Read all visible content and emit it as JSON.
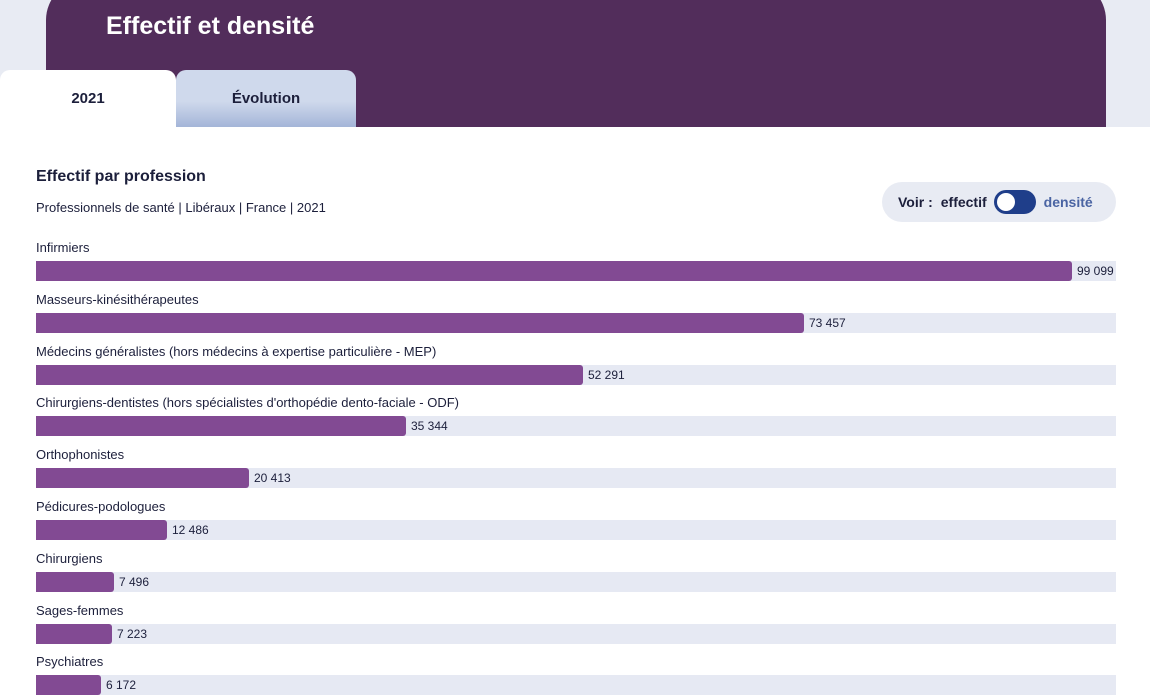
{
  "header": {
    "title": "Effectif et densité"
  },
  "tabs": [
    {
      "label": "2021",
      "active": true
    },
    {
      "label": "Évolution",
      "active": false
    }
  ],
  "colors": {
    "header_bg": "#522d5b",
    "bar": "#824a93",
    "track": "#e6e9f3",
    "toggle": "#1f3e8a"
  },
  "toggle": {
    "prefix": "Voir :",
    "option_left": "effectif",
    "option_right": "densité",
    "selected": "effectif"
  },
  "chart_data": {
    "type": "bar",
    "orientation": "horizontal",
    "title": "Effectif par profession",
    "subtitle": "Professionnels de santé | Libéraux | France | 2021",
    "xlim": [
      0,
      103300
    ],
    "categories": [
      "Infirmiers",
      "Masseurs-kinésithérapeutes",
      "Médecins généralistes (hors médecins à expertise particulière - MEP)",
      "Chirurgiens-dentistes (hors spécialistes d'orthopédie dento-faciale - ODF)",
      "Orthophonistes",
      "Pédicures-podologues",
      "Chirurgiens",
      "Sages-femmes",
      "Psychiatres"
    ],
    "values": [
      99099,
      73457,
      52291,
      35344,
      20413,
      12486,
      7496,
      7223,
      6172
    ],
    "value_labels": [
      "99 099",
      "73 457",
      "52 291",
      "35 344",
      "20 413",
      "12 486",
      "7 496",
      "7 223",
      "6 172"
    ]
  }
}
